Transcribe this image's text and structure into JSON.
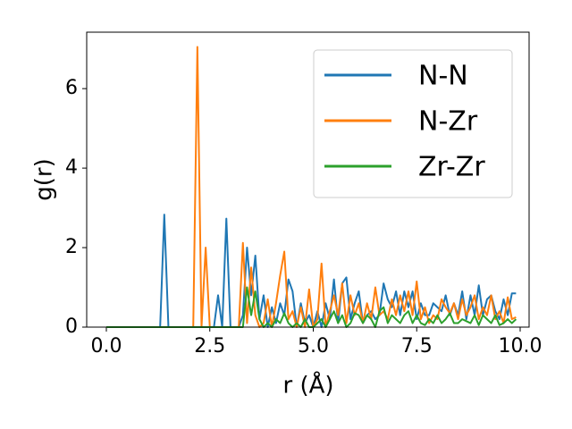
{
  "chart_data": {
    "type": "line",
    "xlabel": "r (Å)",
    "ylabel": "g(r)",
    "x": [
      0,
      0.1,
      0.2,
      0.3,
      0.4,
      0.5,
      0.6,
      0.7,
      0.8,
      0.9,
      1,
      1.1,
      1.2,
      1.3,
      1.4,
      1.5,
      1.6,
      1.7,
      1.8,
      1.9,
      2,
      2.1,
      2.2,
      2.3,
      2.4,
      2.5,
      2.6,
      2.7,
      2.8,
      2.9,
      3,
      3.1,
      3.2,
      3.3,
      3.4,
      3.5,
      3.6,
      3.7,
      3.8,
      3.9,
      4,
      4.1,
      4.2,
      4.3,
      4.4,
      4.5,
      4.6,
      4.7,
      4.8,
      4.9,
      5,
      5.1,
      5.2,
      5.3,
      5.4,
      5.5,
      5.6,
      5.7,
      5.8,
      5.9,
      6,
      6.1,
      6.2,
      6.3,
      6.4,
      6.5,
      6.6,
      6.7,
      6.8,
      6.9,
      7,
      7.1,
      7.2,
      7.3,
      7.4,
      7.5,
      7.6,
      7.7,
      7.8,
      7.9,
      8,
      8.1,
      8.2,
      8.3,
      8.4,
      8.5,
      8.6,
      8.7,
      8.8,
      8.9,
      9,
      9.1,
      9.2,
      9.3,
      9.4,
      9.5,
      9.6,
      9.7,
      9.8,
      9.9
    ],
    "series": [
      {
        "name": "N-N",
        "color": "#1f77b4",
        "values": [
          0,
          0,
          0,
          0,
          0,
          0,
          0,
          0,
          0,
          0,
          0,
          0,
          0,
          0,
          2.83,
          0,
          0,
          0,
          0,
          0,
          0,
          0,
          0,
          0,
          0,
          0,
          0,
          0.8,
          0,
          2.73,
          0,
          0,
          0,
          0.3,
          2.0,
          0.8,
          1.8,
          0.2,
          0.8,
          0,
          0.5,
          0.1,
          0.6,
          0.3,
          1.2,
          0.9,
          0,
          0.6,
          0.1,
          0.3,
          0,
          0.4,
          0,
          0.6,
          0.2,
          1.2,
          0.1,
          1.1,
          1.25,
          0.2,
          0.6,
          0.9,
          0.1,
          0.3,
          0.4,
          0.2,
          0.3,
          1.1,
          0.7,
          0.5,
          0.9,
          0.3,
          0.9,
          0.5,
          0.9,
          0.2,
          0.6,
          0.3,
          0.3,
          0.6,
          0.5,
          0.4,
          0.8,
          0.3,
          0.6,
          0.3,
          0.9,
          0.2,
          0.8,
          0.3,
          1.05,
          0.3,
          0.7,
          0.8,
          0.4,
          0.2,
          0.7,
          0.3,
          0.85,
          0.85
        ]
      },
      {
        "name": "N-Zr",
        "color": "#ff7f0e",
        "values": [
          0,
          0,
          0,
          0,
          0,
          0,
          0,
          0,
          0,
          0,
          0,
          0,
          0,
          0,
          0,
          0,
          0,
          0,
          0,
          0,
          0,
          0,
          7.05,
          0,
          2.0,
          0,
          0,
          0,
          0,
          0,
          0,
          0,
          0,
          2.12,
          0.1,
          1.5,
          0.3,
          0,
          0.1,
          0.7,
          0,
          0.6,
          1.3,
          1.9,
          0.2,
          0.4,
          0,
          0.5,
          0,
          0.95,
          0,
          0.2,
          1.6,
          0,
          0.4,
          0.8,
          0.3,
          1.1,
          0.1,
          0.8,
          0.3,
          0.6,
          0.1,
          0.6,
          0.2,
          1.0,
          0.3,
          0.4,
          0.2,
          0.7,
          0.3,
          0.8,
          0.4,
          0.9,
          0.3,
          1.15,
          0.2,
          0.5,
          0.1,
          0.3,
          0.2,
          0.7,
          0.5,
          0.35,
          0.6,
          0.2,
          0.7,
          0.3,
          0.5,
          0.8,
          0.2,
          0.5,
          0.3,
          0.8,
          0.2,
          0.4,
          0.1,
          0.75,
          0.2,
          0.25
        ]
      },
      {
        "name": "Zr-Zr",
        "color": "#2ca02c",
        "values": [
          0,
          0,
          0,
          0,
          0,
          0,
          0,
          0,
          0,
          0,
          0,
          0,
          0,
          0,
          0,
          0,
          0,
          0,
          0,
          0,
          0,
          0,
          0,
          0,
          0,
          0,
          0,
          0,
          0,
          0,
          0,
          0,
          0,
          0,
          1.0,
          0.3,
          0.9,
          0.2,
          0,
          0.1,
          0,
          0.2,
          0.1,
          0.35,
          0.1,
          0,
          0.1,
          0,
          0.2,
          0,
          0,
          0.1,
          0.2,
          0,
          0.2,
          0.4,
          0.1,
          0.3,
          0,
          0.1,
          0.35,
          0.3,
          0.1,
          0.3,
          0.2,
          0,
          0.4,
          0.5,
          0.1,
          0.3,
          0.2,
          0.1,
          0.3,
          0.4,
          0.1,
          0.3,
          0.1,
          0.05,
          0.2,
          0.1,
          0.3,
          0.1,
          0.2,
          0.35,
          0.1,
          0.1,
          0.2,
          0.15,
          0.1,
          0.3,
          0.05,
          0.3,
          0.2,
          0.1,
          0.3,
          0.05,
          0.1,
          0.2,
          0.1,
          0.2
        ]
      }
    ],
    "xlim": [
      -0.475,
      10.216
    ],
    "ylim": [
      0,
      7.42
    ],
    "xticks": [
      {
        "value": 0,
        "label": "0.0"
      },
      2.5,
      {
        "value": 5,
        "label": "5.0"
      },
      7.5,
      {
        "value": 10,
        "label": "10.0"
      }
    ],
    "yticks": [
      0,
      2,
      4,
      6
    ],
    "legend": "upper right"
  }
}
